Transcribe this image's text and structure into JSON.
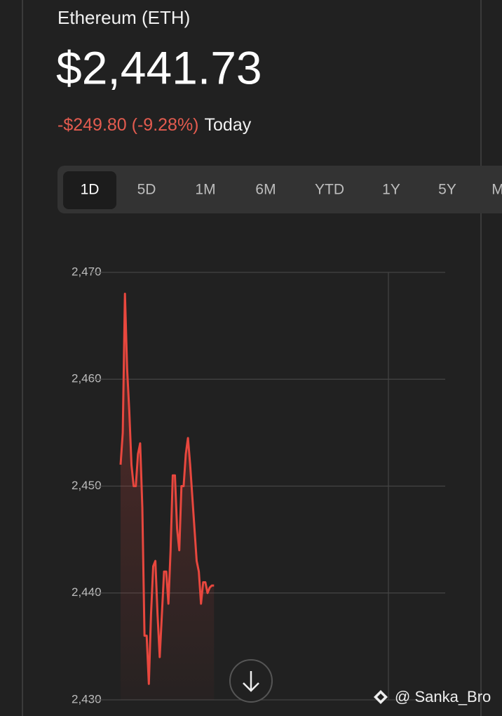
{
  "header": {
    "title": "Ethereum (ETH)",
    "price": "$2,441.73",
    "change": "-$249.80 (-9.28%)",
    "period": "Today"
  },
  "tabs": [
    "1D",
    "5D",
    "1M",
    "6M",
    "YTD",
    "1Y",
    "5Y",
    "M"
  ],
  "chart_data": {
    "type": "line",
    "series": [
      {
        "color": "#e8473e",
        "values": [
          2452,
          2455,
          2468,
          2461,
          2457,
          2452,
          2450,
          2450,
          2453,
          2454,
          2448,
          2436,
          2436,
          2431.5,
          2438,
          2442.5,
          2443,
          2438,
          2434,
          2438,
          2442,
          2442,
          2439,
          2444,
          2451,
          2451,
          2446,
          2444,
          2450,
          2450,
          2453,
          2454.5,
          2452,
          2449,
          2446,
          2443,
          2442,
          2439,
          2441,
          2441,
          2440,
          2440.5,
          2440.7,
          2440.7
        ]
      }
    ],
    "ylim": [
      2430,
      2470
    ],
    "yticks": [
      {
        "value": 2430,
        "label": "2,430"
      },
      {
        "value": 2440,
        "label": "2,440"
      },
      {
        "value": 2450,
        "label": "2,450"
      },
      {
        "value": 2460,
        "label": "2,460"
      },
      {
        "value": 2470,
        "label": "2,470"
      }
    ],
    "grid": true
  },
  "watermark": "@ Sanka_Bro"
}
